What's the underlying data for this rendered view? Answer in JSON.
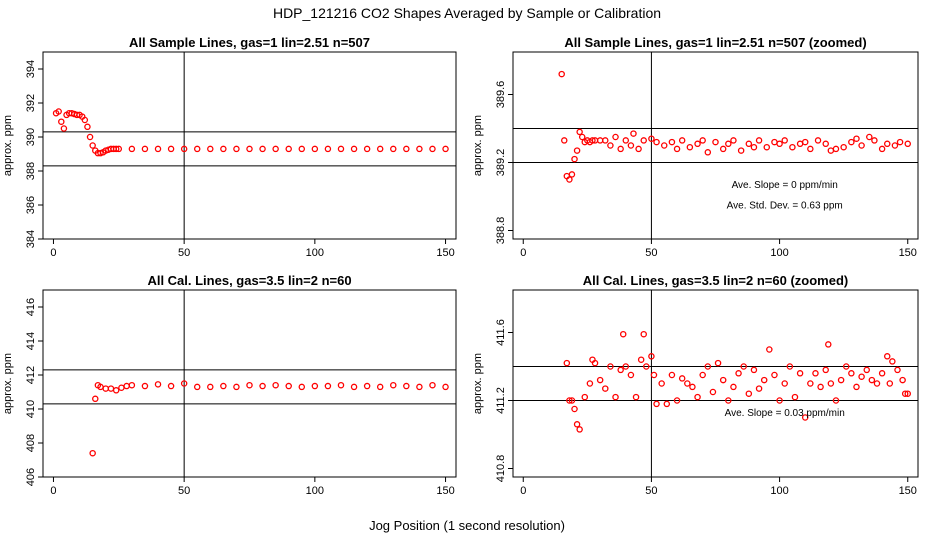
{
  "figure": {
    "title": "HDP_121216  CO2 Shapes Averaged by Sample or Calibration",
    "xlabel": "Jog Position (1 second resolution)"
  },
  "chart_data": [
    {
      "type": "scatter",
      "title": "All Sample Lines, gas=1 lin=2.51 n=507",
      "ylabel": "approx. ppm",
      "xlim": [
        -4,
        154
      ],
      "ylim": [
        384,
        395
      ],
      "xticks": [
        0,
        50,
        100,
        150
      ],
      "yticks": [
        384,
        386,
        388,
        390,
        392,
        394
      ],
      "vline": 50,
      "hlines": [
        388.3,
        390.3
      ],
      "marker_color": "#ff0000",
      "series": [
        {
          "x": [
            1,
            2,
            3,
            4,
            5,
            6,
            7,
            8,
            9,
            10,
            11,
            12,
            13,
            14,
            15,
            16,
            17,
            18,
            19,
            20,
            21,
            22,
            23,
            24,
            25,
            30,
            35,
            40,
            45,
            50,
            55,
            60,
            65,
            70,
            75,
            80,
            85,
            90,
            95,
            100,
            105,
            110,
            115,
            120,
            125,
            130,
            135,
            140,
            145,
            150
          ],
          "y": [
            391.4,
            391.5,
            390.9,
            390.5,
            391.3,
            391.4,
            391.4,
            391.35,
            391.3,
            391.3,
            391.2,
            391.0,
            390.6,
            390.0,
            389.5,
            389.2,
            389.05,
            389.05,
            389.1,
            389.2,
            389.25,
            389.3,
            389.3,
            389.3,
            389.3,
            389.3,
            389.3,
            389.3,
            389.3,
            389.3,
            389.3,
            389.3,
            389.3,
            389.3,
            389.3,
            389.3,
            389.3,
            389.3,
            389.3,
            389.3,
            389.3,
            389.3,
            389.3,
            389.3,
            389.3,
            389.3,
            389.3,
            389.3,
            389.3,
            389.3
          ]
        }
      ],
      "annotations": []
    },
    {
      "type": "scatter",
      "title": "All Sample Lines, gas=1 lin=2.51 n=507 (zoomed)",
      "ylabel": "approx. ppm",
      "xlim": [
        -4,
        154
      ],
      "ylim": [
        388.75,
        389.85
      ],
      "xticks": [
        0,
        50,
        100,
        150
      ],
      "yticks": [
        388.8,
        389.2,
        389.6
      ],
      "ytick_labels": [
        "388.8",
        "389.2",
        "389.6"
      ],
      "vline": 50,
      "hlines": [
        389.2,
        389.4
      ],
      "marker_color": "#ff0000",
      "series": [
        {
          "x": [
            15,
            16,
            17,
            18,
            19,
            20,
            21,
            22,
            23,
            24,
            25,
            26,
            27,
            28,
            30,
            32,
            34,
            36,
            38,
            40,
            42,
            43,
            45,
            47,
            50,
            52,
            55,
            58,
            60,
            62,
            65,
            68,
            70,
            72,
            75,
            78,
            80,
            82,
            85,
            88,
            90,
            92,
            95,
            98,
            100,
            102,
            105,
            108,
            110,
            112,
            115,
            118,
            120,
            122,
            125,
            128,
            130,
            132,
            135,
            137,
            140,
            142,
            145,
            147,
            150
          ],
          "y": [
            389.72,
            389.33,
            389.12,
            389.1,
            389.13,
            389.22,
            389.27,
            389.38,
            389.35,
            389.32,
            389.33,
            389.32,
            389.33,
            389.33,
            389.33,
            389.33,
            389.3,
            389.35,
            389.28,
            389.33,
            389.3,
            389.37,
            389.28,
            389.33,
            389.34,
            389.32,
            389.3,
            389.32,
            389.28,
            389.33,
            389.29,
            389.31,
            389.33,
            389.26,
            389.32,
            389.28,
            389.31,
            389.33,
            389.27,
            389.31,
            389.29,
            389.33,
            389.29,
            389.32,
            389.31,
            389.33,
            389.29,
            389.31,
            389.32,
            389.28,
            389.33,
            389.31,
            389.27,
            389.28,
            389.29,
            389.32,
            389.34,
            389.3,
            389.35,
            389.33,
            389.28,
            389.31,
            389.3,
            389.32,
            389.31
          ]
        }
      ],
      "annotations": [
        {
          "text": "Ave. Slope =  0  ppm/min",
          "x": 102,
          "y": 389.05
        },
        {
          "text": "Ave. Std. Dev. =  0.63  ppm",
          "x": 102,
          "y": 388.93
        }
      ]
    },
    {
      "type": "scatter",
      "title": "All Cal. Lines, gas=3.5 lin=2 n=60",
      "ylabel": "approx. ppm",
      "xlim": [
        -4,
        154
      ],
      "ylim": [
        406,
        417
      ],
      "xticks": [
        0,
        50,
        100,
        150
      ],
      "yticks": [
        406,
        408,
        410,
        412,
        414,
        416
      ],
      "vline": 50,
      "hlines": [
        410.3,
        412.3
      ],
      "marker_color": "#ff0000",
      "series": [
        {
          "x": [
            15,
            16,
            17,
            18,
            20,
            22,
            24,
            26,
            28,
            30,
            35,
            40,
            45,
            50,
            55,
            60,
            65,
            70,
            75,
            80,
            85,
            90,
            95,
            100,
            105,
            110,
            115,
            120,
            125,
            130,
            135,
            140,
            145,
            150
          ],
          "y": [
            407.4,
            410.6,
            411.4,
            411.3,
            411.2,
            411.2,
            411.1,
            411.25,
            411.35,
            411.4,
            411.35,
            411.45,
            411.35,
            411.5,
            411.3,
            411.3,
            411.35,
            411.3,
            411.4,
            411.35,
            411.4,
            411.35,
            411.3,
            411.35,
            411.35,
            411.4,
            411.3,
            411.35,
            411.3,
            411.4,
            411.35,
            411.3,
            411.4,
            411.3
          ]
        }
      ],
      "annotations": []
    },
    {
      "type": "scatter",
      "title": "All Cal. Lines, gas=3.5 lin=2 n=60 (zoomed)",
      "ylabel": "approx. ppm",
      "xlim": [
        -4,
        154
      ],
      "ylim": [
        410.75,
        411.85
      ],
      "xticks": [
        0,
        50,
        100,
        150
      ],
      "yticks": [
        410.8,
        411.2,
        411.6
      ],
      "ytick_labels": [
        "410.8",
        "411.2",
        "411.6"
      ],
      "vline": 50,
      "hlines": [
        411.2,
        411.4
      ],
      "marker_color": "#ff0000",
      "series": [
        {
          "x": [
            17,
            18,
            19,
            20,
            21,
            22,
            24,
            26,
            27,
            28,
            30,
            32,
            34,
            36,
            38,
            39,
            40,
            42,
            44,
            46,
            47,
            48,
            50,
            51,
            52,
            54,
            56,
            58,
            60,
            62,
            64,
            66,
            68,
            70,
            72,
            74,
            76,
            78,
            80,
            82,
            84,
            86,
            88,
            90,
            92,
            94,
            96,
            98,
            100,
            102,
            104,
            106,
            108,
            110,
            112,
            114,
            116,
            118,
            119,
            120,
            122,
            124,
            126,
            128,
            130,
            132,
            134,
            136,
            138,
            140,
            142,
            143,
            144,
            146,
            148,
            149,
            150
          ],
          "y": [
            411.42,
            411.2,
            411.2,
            411.15,
            411.06,
            411.03,
            411.22,
            411.3,
            411.44,
            411.42,
            411.32,
            411.27,
            411.4,
            411.22,
            411.38,
            411.59,
            411.4,
            411.35,
            411.22,
            411.44,
            411.59,
            411.4,
            411.46,
            411.35,
            411.18,
            411.3,
            411.18,
            411.35,
            411.2,
            411.33,
            411.3,
            411.28,
            411.22,
            411.35,
            411.4,
            411.25,
            411.42,
            411.32,
            411.2,
            411.28,
            411.36,
            411.4,
            411.24,
            411.38,
            411.27,
            411.32,
            411.5,
            411.35,
            411.2,
            411.3,
            411.4,
            411.22,
            411.36,
            411.1,
            411.3,
            411.36,
            411.28,
            411.38,
            411.53,
            411.3,
            411.2,
            411.32,
            411.4,
            411.36,
            411.28,
            411.34,
            411.38,
            411.32,
            411.3,
            411.36,
            411.46,
            411.3,
            411.43,
            411.38,
            411.32,
            411.24,
            411.24
          ]
        }
      ],
      "annotations": [
        {
          "text": "Ave. Slope =  0.03  ppm/min",
          "x": 102,
          "y": 411.11
        }
      ]
    }
  ]
}
